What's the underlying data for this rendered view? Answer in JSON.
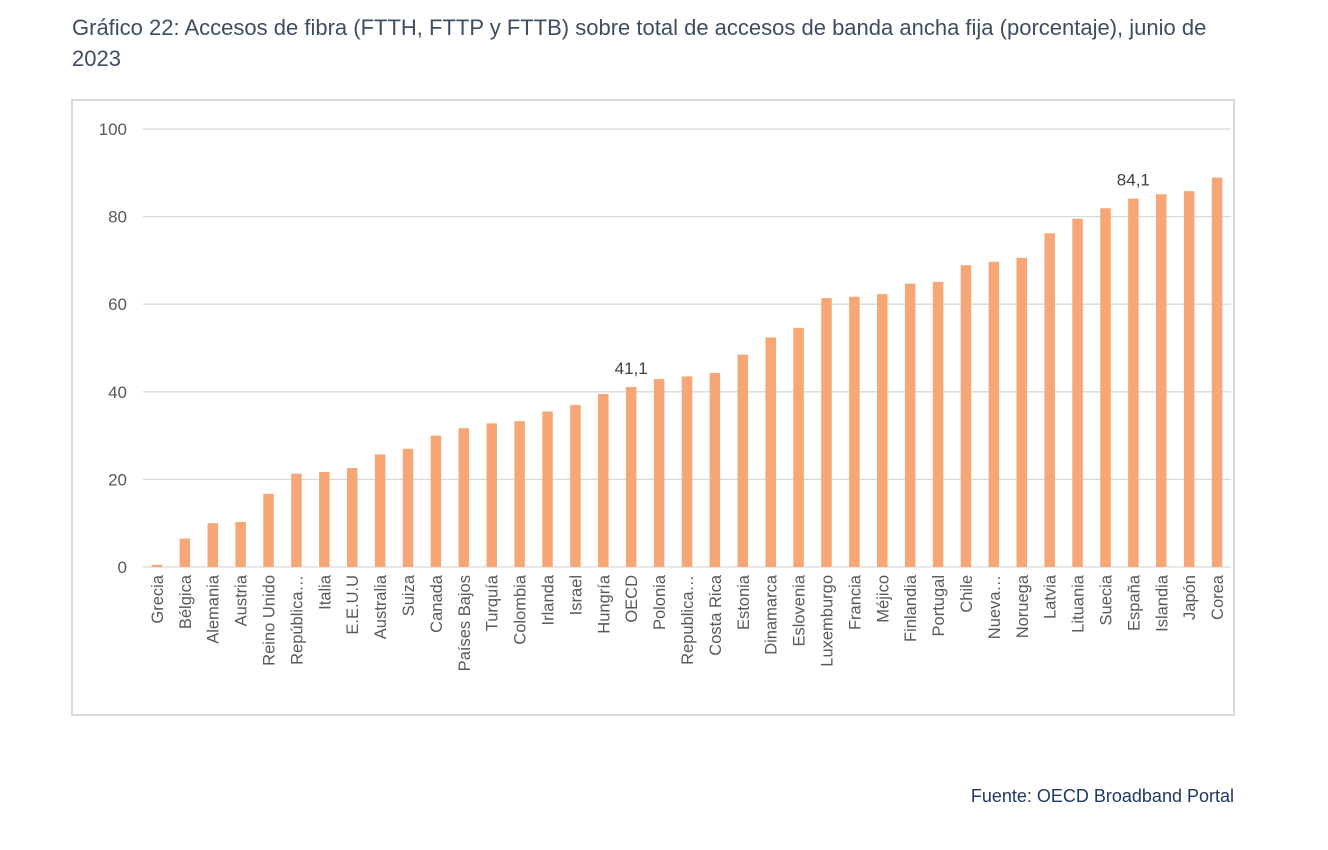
{
  "title": "Gráfico 22: Accesos de fibra (FTTH, FTTP y FTTB) sobre total de accesos de banda ancha fija (porcentaje), junio de 2023",
  "source": "Fuente: OECD Broadband Portal",
  "colors": {
    "bar": "#f7a676",
    "grid": "#d9d9d9",
    "axis_text": "#595959",
    "title": "#3f4d63",
    "source": "#1f3864"
  },
  "chart_data": {
    "type": "bar",
    "title": "Gráfico 22: Accesos de fibra (FTTH, FTTP y FTTB) sobre total de accesos de banda ancha fija (porcentaje), junio de 2023",
    "xlabel": "",
    "ylabel": "",
    "ylim": [
      0,
      100
    ],
    "yticks": [
      0,
      20,
      40,
      60,
      80,
      100
    ],
    "grid": true,
    "legend": "none",
    "categories": [
      "Grecia",
      "Bélgica",
      "Alemania",
      "Austria",
      "Reino Unido",
      "República…",
      "Italia",
      "E.E.U.U",
      "Australia",
      "Suiza",
      "Canada",
      "Países Bajos",
      "Turquía",
      "Colombia",
      "Irlanda",
      "Israel",
      "Hungría",
      "OECD",
      "Polonia",
      "Republica…",
      "Costa Rica",
      "Estonia",
      "Dinamarca",
      "Eslovenia",
      "Luxemburgo",
      "Francia",
      "Méjico",
      "Finlandia",
      "Portugal",
      "Chile",
      "Nueva…",
      "Noruega",
      "Latvia",
      "Lituania",
      "Suecia",
      "España",
      "Islandia",
      "Japón",
      "Corea"
    ],
    "values": [
      0.5,
      6.5,
      10,
      10.3,
      16.7,
      21.3,
      21.7,
      22.6,
      25.7,
      27,
      30,
      31.7,
      32.8,
      33.3,
      35.5,
      37,
      39.5,
      41.1,
      42.9,
      43.5,
      44.3,
      48.5,
      52.4,
      54.6,
      61.4,
      61.7,
      62.3,
      64.7,
      65.1,
      68.9,
      69.7,
      70.6,
      76.2,
      79.5,
      81.9,
      84.1,
      85.1,
      85.8,
      88.9
    ],
    "data_labels": [
      {
        "category": "OECD",
        "text": "41,1"
      },
      {
        "category": "España",
        "text": "84,1"
      }
    ]
  }
}
